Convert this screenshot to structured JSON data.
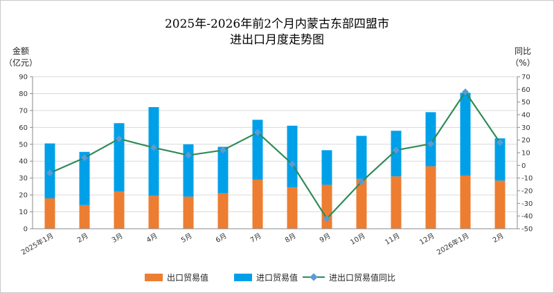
{
  "chart_data": {
    "type": "bar",
    "title_line1": "2025年-2026年前2个月内蒙古东部四盟市",
    "title_line2": "进出口月度走势图",
    "ylabel_left_line1": "金额",
    "ylabel_left_line2": "（亿元）",
    "ylabel_right_line1": "同比",
    "ylabel_right_line2": "（%）",
    "categories": [
      "2025年1月",
      "2月",
      "3月",
      "4月",
      "5月",
      "6月",
      "7月",
      "8月",
      "9月",
      "10月",
      "11月",
      "12月",
      "2026年1月",
      "2月"
    ],
    "series": [
      {
        "name": "出口贸易值",
        "type": "bar-stacked",
        "color": "#ed7d31",
        "values": [
          18,
          14,
          22,
          19.5,
          19,
          21,
          29,
          24.5,
          26,
          29.5,
          31,
          37,
          31.5,
          28.5
        ]
      },
      {
        "name": "进口贸易值",
        "type": "bar-stacked",
        "color": "#00a0e9",
        "values": [
          32.5,
          31.5,
          40.5,
          52.5,
          31,
          27.5,
          35.5,
          36.5,
          20.5,
          25.5,
          27,
          32,
          49,
          25
        ]
      },
      {
        "name": "进出口贸易值同比",
        "type": "line",
        "axis": "right",
        "color": "#2e8b57",
        "marker_color": "#5b9bd5",
        "values": [
          -6,
          6,
          21,
          14,
          8,
          12,
          26,
          1,
          -42,
          -13,
          12,
          17,
          58,
          18
        ]
      }
    ],
    "ylim_left": [
      0,
      90
    ],
    "yticks_left": [
      0,
      10,
      20,
      30,
      40,
      50,
      60,
      70,
      80,
      90
    ],
    "ylim_right": [
      -50,
      70
    ],
    "yticks_right": [
      -50,
      -40,
      -30,
      -20,
      -10,
      0,
      10,
      20,
      30,
      40,
      50,
      60,
      70
    ],
    "grid": true,
    "legend_position": "bottom"
  }
}
